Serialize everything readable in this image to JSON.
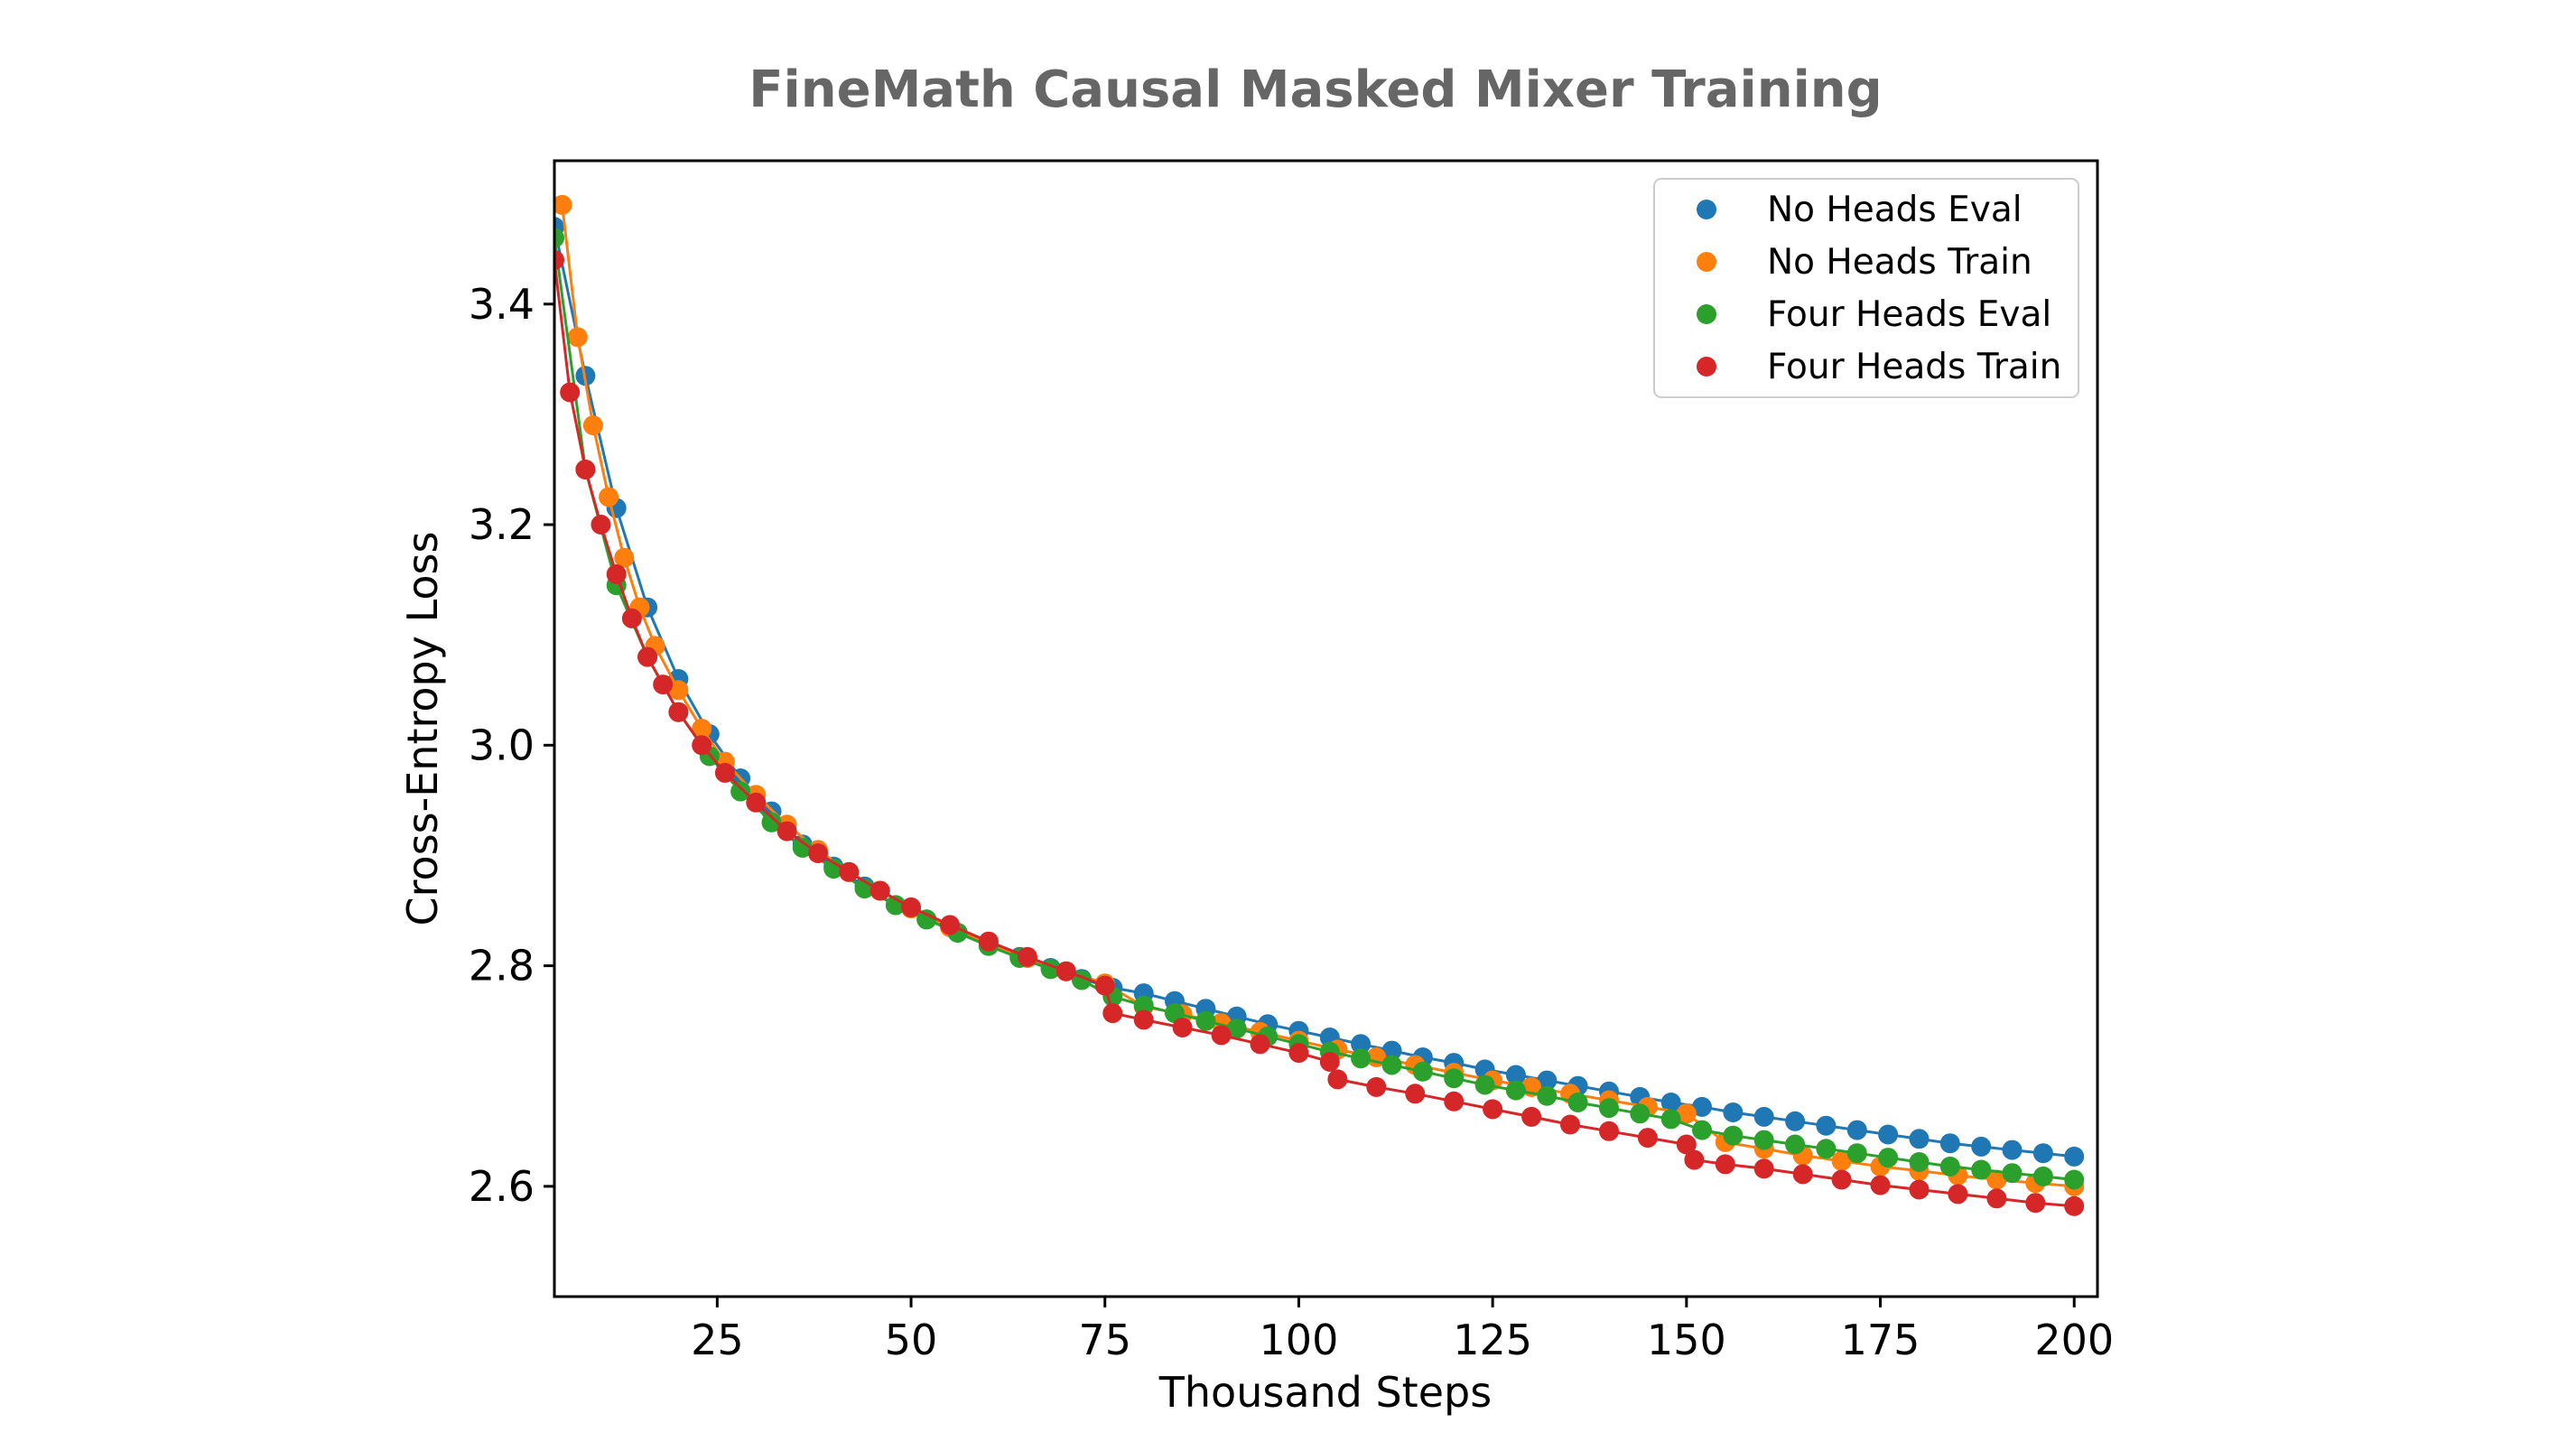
{
  "chart_data": {
    "type": "scatter",
    "title": "FineMath Causal Masked Mixer Training",
    "xlabel": "Thousand Steps",
    "ylabel": "Cross-Entropy Loss",
    "xlim": [
      4,
      203
    ],
    "ylim": [
      2.5,
      3.53
    ],
    "xticks": [
      25,
      50,
      75,
      100,
      125,
      150,
      175,
      200
    ],
    "yticks": [
      2.6,
      2.8,
      3.0,
      3.2,
      3.4
    ],
    "ytick_labels": [
      "2.6",
      "2.8",
      "3.0",
      "3.2",
      "3.4"
    ],
    "grid": false,
    "legend_position": "top-right",
    "series": [
      {
        "name": "No Heads Eval",
        "color": "#1f77b4",
        "x": [
          4,
          8,
          12,
          16,
          20,
          24,
          28,
          32,
          36,
          40,
          44,
          48,
          52,
          56,
          60,
          64,
          68,
          72,
          76,
          80,
          84,
          88,
          92,
          96,
          100,
          104,
          108,
          112,
          116,
          120,
          124,
          128,
          132,
          136,
          140,
          144,
          148,
          152,
          156,
          160,
          164,
          168,
          172,
          176,
          180,
          184,
          188,
          192,
          196,
          200
        ],
        "y": [
          3.47,
          3.335,
          3.215,
          3.125,
          3.06,
          3.01,
          2.97,
          2.94,
          2.91,
          2.89,
          2.872,
          2.855,
          2.842,
          2.83,
          2.818,
          2.808,
          2.798,
          2.788,
          2.78,
          2.775,
          2.768,
          2.761,
          2.754,
          2.747,
          2.741,
          2.735,
          2.729,
          2.723,
          2.717,
          2.712,
          2.706,
          2.701,
          2.696,
          2.691,
          2.686,
          2.681,
          2.676,
          2.672,
          2.667,
          2.663,
          2.659,
          2.655,
          2.651,
          2.647,
          2.643,
          2.639,
          2.636,
          2.633,
          2.63,
          2.627
        ]
      },
      {
        "name": "No Heads Train",
        "color": "#ff7f0e",
        "x": [
          5,
          7,
          9,
          11,
          13,
          15,
          17,
          20,
          23,
          26,
          30,
          34,
          38,
          42,
          46,
          50,
          55,
          60,
          65,
          70,
          75,
          80,
          85,
          90,
          95,
          100,
          105,
          110,
          115,
          120,
          125,
          130,
          135,
          140,
          145,
          150,
          155,
          160,
          165,
          170,
          175,
          180,
          185,
          190,
          195,
          200
        ],
        "y": [
          3.49,
          3.37,
          3.29,
          3.225,
          3.17,
          3.125,
          3.09,
          3.05,
          3.015,
          2.985,
          2.955,
          2.928,
          2.905,
          2.885,
          2.868,
          2.852,
          2.835,
          2.82,
          2.807,
          2.795,
          2.784,
          2.763,
          2.756,
          2.748,
          2.74,
          2.732,
          2.724,
          2.717,
          2.71,
          2.703,
          2.696,
          2.69,
          2.684,
          2.678,
          2.672,
          2.666,
          2.64,
          2.634,
          2.628,
          2.623,
          2.618,
          2.614,
          2.61,
          2.606,
          2.603,
          2.6
        ]
      },
      {
        "name": "Four Heads Eval",
        "color": "#2ca02c",
        "x": [
          4,
          8,
          12,
          16,
          20,
          24,
          28,
          32,
          36,
          40,
          44,
          48,
          52,
          56,
          60,
          64,
          68,
          72,
          76,
          80,
          84,
          88,
          92,
          96,
          100,
          104,
          108,
          112,
          116,
          120,
          124,
          128,
          132,
          136,
          140,
          144,
          148,
          152,
          156,
          160,
          164,
          168,
          172,
          176,
          180,
          184,
          188,
          192,
          196,
          200
        ],
        "y": [
          3.46,
          3.25,
          3.145,
          3.08,
          3.03,
          2.99,
          2.958,
          2.93,
          2.907,
          2.888,
          2.87,
          2.855,
          2.842,
          2.83,
          2.818,
          2.807,
          2.797,
          2.787,
          2.772,
          2.764,
          2.757,
          2.75,
          2.743,
          2.736,
          2.729,
          2.722,
          2.716,
          2.71,
          2.704,
          2.698,
          2.692,
          2.687,
          2.682,
          2.676,
          2.671,
          2.666,
          2.661,
          2.651,
          2.646,
          2.642,
          2.638,
          2.634,
          2.63,
          2.626,
          2.622,
          2.618,
          2.615,
          2.612,
          2.609,
          2.606
        ]
      },
      {
        "name": "Four Heads Train",
        "color": "#d62728",
        "x": [
          4,
          6,
          8,
          10,
          12,
          14,
          16,
          18,
          20,
          23,
          26,
          30,
          34,
          38,
          42,
          46,
          50,
          55,
          60,
          65,
          70,
          75,
          76,
          80,
          85,
          90,
          95,
          100,
          104,
          105,
          110,
          115,
          120,
          125,
          130,
          135,
          140,
          145,
          150,
          151,
          155,
          160,
          165,
          170,
          175,
          180,
          185,
          190,
          195,
          200
        ],
        "y": [
          3.44,
          3.32,
          3.25,
          3.2,
          3.155,
          3.115,
          3.08,
          3.055,
          3.03,
          3.0,
          2.975,
          2.948,
          2.922,
          2.902,
          2.885,
          2.868,
          2.853,
          2.837,
          2.822,
          2.808,
          2.795,
          2.782,
          2.757,
          2.751,
          2.744,
          2.737,
          2.729,
          2.721,
          2.713,
          2.697,
          2.69,
          2.684,
          2.677,
          2.67,
          2.663,
          2.656,
          2.65,
          2.644,
          2.638,
          2.624,
          2.62,
          2.616,
          2.611,
          2.606,
          2.601,
          2.597,
          2.593,
          2.589,
          2.585,
          2.582
        ]
      }
    ]
  }
}
